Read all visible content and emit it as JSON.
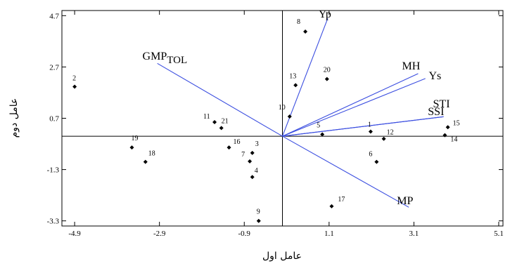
{
  "chart_data": {
    "type": "scatter",
    "title": "",
    "xlabel": "عامل اول",
    "ylabel": "عامل دوم",
    "xlim": [
      -5.2,
      5.2
    ],
    "ylim": [
      -3.5,
      4.9
    ],
    "xticks": [
      -4.9,
      -2.9,
      -0.9,
      1.1,
      3.1,
      5.1
    ],
    "yticks": [
      4.7,
      2.7,
      0.7,
      -1.3,
      -3.3
    ],
    "xtick_labels": [
      "-4.9",
      "-2.9",
      "-0.9",
      "1.1",
      "3.1",
      "5.1"
    ],
    "ytick_labels": [
      "4.7",
      "2.7",
      "0.7",
      "-1.3",
      "-3.3"
    ],
    "points": [
      {
        "label": "1",
        "x": 2.08,
        "y": 0.18
      },
      {
        "label": "2",
        "x": -4.9,
        "y": 1.93
      },
      {
        "label": "3",
        "x": -0.71,
        "y": -0.65
      },
      {
        "label": "4",
        "x": -0.71,
        "y": -1.59
      },
      {
        "label": "5",
        "x": 0.94,
        "y": 0.07
      },
      {
        "label": "6",
        "x": 2.22,
        "y": -1.0
      },
      {
        "label": "7",
        "x": -0.77,
        "y": -0.98
      },
      {
        "label": "8",
        "x": 0.54,
        "y": 4.08
      },
      {
        "label": "9",
        "x": -0.56,
        "y": -3.3
      },
      {
        "label": "10",
        "x": 0.17,
        "y": 0.77
      },
      {
        "label": "11",
        "x": -1.6,
        "y": 0.55
      },
      {
        "label": "12",
        "x": 2.39,
        "y": -0.1
      },
      {
        "label": "13",
        "x": 0.31,
        "y": 1.99
      },
      {
        "label": "14",
        "x": 3.83,
        "y": 0.04
      },
      {
        "label": "15",
        "x": 3.9,
        "y": 0.35
      },
      {
        "label": "16",
        "x": -1.26,
        "y": -0.44
      },
      {
        "label": "17",
        "x": 1.16,
        "y": -2.73
      },
      {
        "label": "18",
        "x": -3.23,
        "y": -1.0
      },
      {
        "label": "19",
        "x": -3.55,
        "y": -0.44
      },
      {
        "label": "20",
        "x": 1.05,
        "y": 2.23
      },
      {
        "label": "21",
        "x": -1.44,
        "y": 0.32
      }
    ],
    "vectors": [
      {
        "name": "Yp",
        "x": 1.07,
        "y": 4.6
      },
      {
        "name": "MH",
        "x": 3.2,
        "y": 2.44
      },
      {
        "name": "Ys",
        "x": 3.37,
        "y": 2.25
      },
      {
        "name": "STI",
        "x": 3.8,
        "y": 0.76
      },
      {
        "name": "SSI",
        "x": 3.8,
        "y": 0.76
      },
      {
        "name": "MP",
        "x": 2.98,
        "y": -2.77
      },
      {
        "name": "GMPTOL",
        "x": -2.95,
        "y": 2.84
      }
    ],
    "vector_labels": [
      {
        "name": "Yp",
        "text": "Yp",
        "sub": "",
        "x": 0.85,
        "y": 4.62
      },
      {
        "name": "MH",
        "text": "MH",
        "sub": "",
        "x": 2.82,
        "y": 2.6
      },
      {
        "name": "Ys",
        "text": "Ys",
        "sub": "",
        "x": 3.45,
        "y": 2.22
      },
      {
        "name": "STI",
        "text": "STI",
        "sub": "",
        "x": 3.55,
        "y": 1.12
      },
      {
        "name": "SSI",
        "text": "SSI",
        "sub": "",
        "x": 3.43,
        "y": 0.82
      },
      {
        "name": "MP",
        "text": "MP",
        "sub": "",
        "x": 2.7,
        "y": -2.65
      },
      {
        "name": "GMPTOL",
        "text": "GMP",
        "sub": "TOL",
        "x": -3.3,
        "y": 2.98
      }
    ],
    "grid": false,
    "legend": "none",
    "colors": {
      "vector": "#3b4ee0",
      "point": "#000000",
      "axis": "#000000"
    }
  }
}
